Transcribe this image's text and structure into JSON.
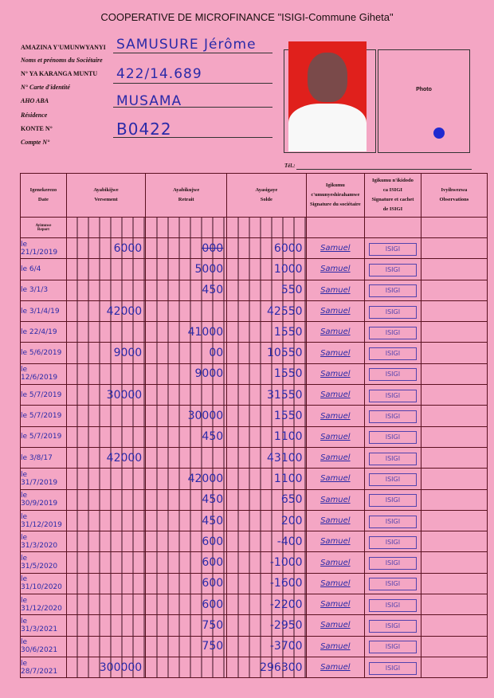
{
  "title": "COOPERATIVE DE MICROFINANCE \"ISIGI-Commune Giheta\"",
  "fields": {
    "name_label": "AMAZINA Y'UMUNWYANYI",
    "name_label_fr": "Noms et prénoms du Sociétaire",
    "name_value": "SAMUSURE Jérôme",
    "id_label": "N° YA KARANGA MUNTU",
    "id_label_fr": "N° Carte d'identité",
    "id_value": "422/14.689",
    "residence_label": "AHO ABA",
    "residence_label_fr": "Résidence",
    "residence_value": "MUSAMA",
    "account_label": "KONTE N°",
    "account_label_fr": "Compte N°",
    "account_value": "B0422",
    "photo_label": "Photo",
    "tel_label": "Tél.:"
  },
  "table": {
    "headers": [
      [
        "Igenekerezo",
        "Date"
      ],
      [
        "Ayabikijwe",
        "Versement"
      ],
      [
        "Ayabikujwe",
        "Retrait"
      ],
      [
        "Ayasigaye",
        "Solde"
      ],
      [
        "Igikumu",
        "c'umunyeshirahamwe",
        "Signature du sociétaire"
      ],
      [
        "Igikumu n'ikidodo",
        "ca ISIGI",
        "Signature et cachet",
        "de ISIGI"
      ],
      [
        "Ivyihwezwa",
        "Observations"
      ]
    ],
    "report_label": [
      "Ayimuwe",
      "Report"
    ],
    "stamp_text": "ISIGI",
    "rows": [
      {
        "date": "le 21/1/2019",
        "versement": "6000",
        "retrait": "000",
        "solde": "6000",
        "signature": "Samuel"
      },
      {
        "date": "le 6/4",
        "versement": "",
        "retrait": "5000",
        "solde": "1000",
        "signature": "Samuel"
      },
      {
        "date": "le 3/1/3",
        "versement": "",
        "retrait": "450",
        "solde": "550",
        "signature": "Samuel"
      },
      {
        "date": "le 3/1/4/19",
        "versement": "42000",
        "retrait": "",
        "solde": "42550",
        "signature": "Samuel"
      },
      {
        "date": "le 22/4/19",
        "versement": "",
        "retrait": "41000",
        "solde": "1550",
        "signature": "Samuel"
      },
      {
        "date": "le 5/6/2019",
        "versement": "9000",
        "retrait": "00",
        "solde": "10550",
        "signature": "Samuel"
      },
      {
        "date": "le 12/6/2019",
        "versement": "",
        "retrait": "9000",
        "solde": "1550",
        "signature": "Samuel"
      },
      {
        "date": "le 5/7/2019",
        "versement": "30000",
        "retrait": "",
        "solde": "31550",
        "signature": "Samuel"
      },
      {
        "date": "le 5/7/2019",
        "versement": "",
        "retrait": "30000",
        "solde": "1550",
        "signature": "Samuel"
      },
      {
        "date": "le 5/7/2019",
        "versement": "",
        "retrait": "450",
        "solde": "1100",
        "signature": "Samuel"
      },
      {
        "date": "le 3/8/17",
        "versement": "42000",
        "retrait": "",
        "solde": "43100",
        "signature": "Samuel"
      },
      {
        "date": "le 31/7/2019",
        "versement": "",
        "retrait": "42000",
        "solde": "1100",
        "signature": "Samuel"
      },
      {
        "date": "le 30/9/2019",
        "versement": "",
        "retrait": "450",
        "solde": "650",
        "signature": "Samuel"
      },
      {
        "date": "le 31/12/2019",
        "versement": "",
        "retrait": "450",
        "solde": "200",
        "signature": "Samuel"
      },
      {
        "date": "le 31/3/2020",
        "versement": "",
        "retrait": "600",
        "solde": "-400",
        "signature": "Samuel"
      },
      {
        "date": "le 31/5/2020",
        "versement": "",
        "retrait": "600",
        "solde": "-1000",
        "signature": "Samuel"
      },
      {
        "date": "le 31/10/2020",
        "versement": "",
        "retrait": "600",
        "solde": "-1600",
        "signature": "Samuel"
      },
      {
        "date": "le 31/12/2020",
        "versement": "",
        "retrait": "600",
        "solde": "-2200",
        "signature": "Samuel"
      },
      {
        "date": "le 31/3/2021",
        "versement": "",
        "retrait": "750",
        "solde": "-2950",
        "signature": "Samuel"
      },
      {
        "date": "le 30/6/2021",
        "versement": "",
        "retrait": "750",
        "solde": "-3700",
        "signature": "Samuel"
      },
      {
        "date": "le 28/7/2021",
        "versement": "300000",
        "retrait": "",
        "solde": "296300",
        "signature": "Samuel"
      }
    ]
  },
  "colors": {
    "paper": "#f4a6c4",
    "ink": "#2a2aa8",
    "grid": "#5a1020"
  }
}
